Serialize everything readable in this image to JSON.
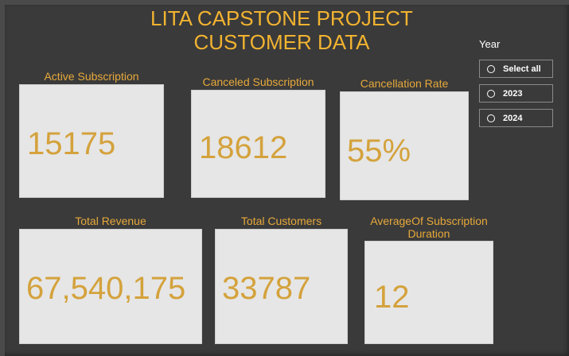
{
  "dashboard": {
    "title_line1": "LITA CAPSTONE PROJECT",
    "title_line2": "CUSTOMER DATA"
  },
  "cards": {
    "active_subscription": {
      "label": "Active Subscription",
      "value": "15175"
    },
    "canceled_subscription": {
      "label": "Canceled Subscription",
      "value": "18612"
    },
    "cancellation_rate": {
      "label": "Cancellation Rate",
      "value": "55%"
    },
    "total_revenue": {
      "label": "Total Revenue",
      "value": "67,540,175"
    },
    "total_customers": {
      "label": "Total Customers",
      "value": "33787"
    },
    "avg_subscription_duration": {
      "label_line1": "AverageOf Subscription",
      "label_line2": "Duration",
      "value": "12"
    }
  },
  "slicer": {
    "title": "Year",
    "options": [
      "Select all",
      "2023",
      "2024"
    ]
  },
  "colors": {
    "background": "#3a3a3a",
    "accent": "#f2b330",
    "card_background": "#e6e6e6",
    "card_value": "#d4a23c"
  }
}
